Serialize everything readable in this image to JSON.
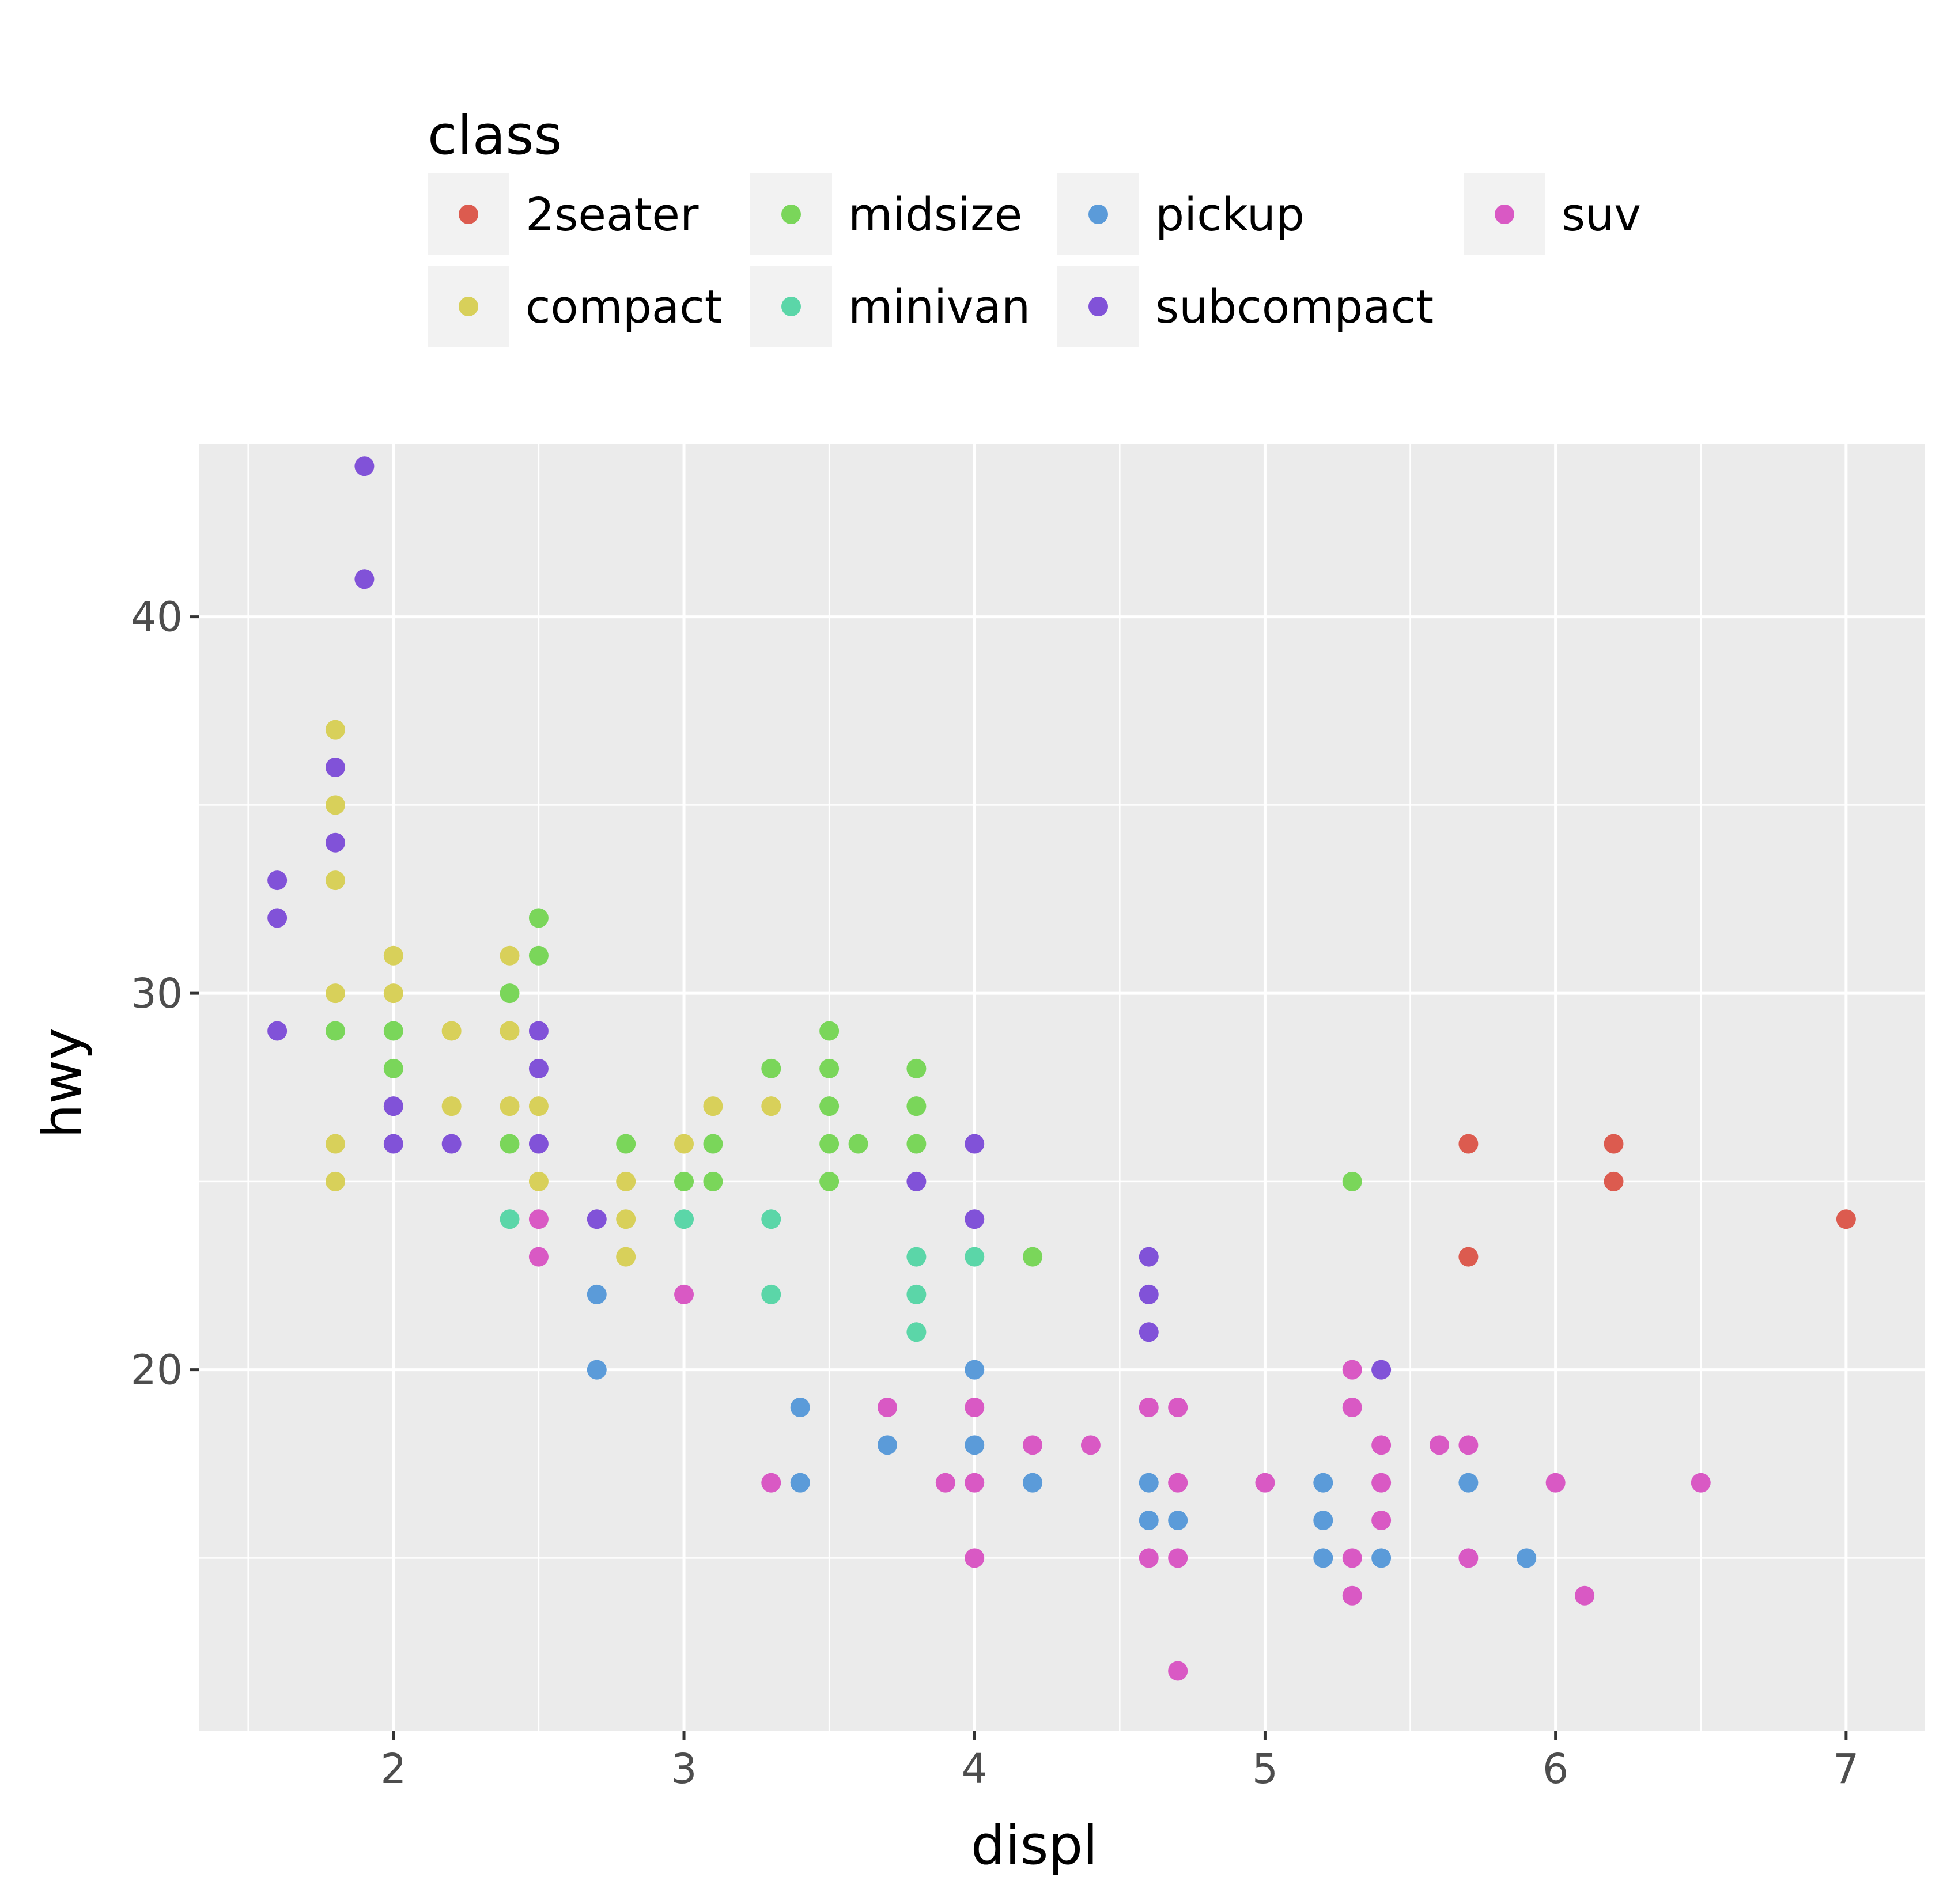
{
  "chart_data": {
    "type": "scatter",
    "title": "",
    "xlabel": "displ",
    "ylabel": "hwy",
    "xlim": [
      1.33,
      7.27
    ],
    "ylim": [
      10.4,
      44.6
    ],
    "x_ticks": [
      2,
      3,
      4,
      5,
      6,
      7
    ],
    "y_ticks": [
      20,
      30,
      40
    ],
    "grid": true,
    "legend": {
      "title": "class",
      "placement": "top",
      "entries": [
        {
          "name": "2seater",
          "color": "#dc5b4f"
        },
        {
          "name": "compact",
          "color": "#d8d05a"
        },
        {
          "name": "midsize",
          "color": "#7ad65a"
        },
        {
          "name": "minivan",
          "color": "#5bd6a8"
        },
        {
          "name": "pickup",
          "color": "#5b9bd9"
        },
        {
          "name": "subcompact",
          "color": "#8152d8"
        },
        {
          "name": "suv",
          "color": "#d959c4"
        }
      ]
    },
    "series": [
      {
        "name": "2seater",
        "color": "#dc5b4f",
        "points": [
          [
            5.7,
            26
          ],
          [
            5.7,
            23
          ],
          [
            6.2,
            26
          ],
          [
            6.2,
            25
          ],
          [
            7.0,
            24
          ]
        ]
      },
      {
        "name": "compact",
        "color": "#d8d05a",
        "points": [
          [
            1.8,
            37
          ],
          [
            1.8,
            35
          ],
          [
            1.8,
            33
          ],
          [
            1.8,
            30
          ],
          [
            1.8,
            26
          ],
          [
            1.8,
            25
          ],
          [
            2.0,
            31
          ],
          [
            2.0,
            30
          ],
          [
            2.2,
            29
          ],
          [
            2.2,
            27
          ],
          [
            2.4,
            31
          ],
          [
            2.4,
            29
          ],
          [
            2.4,
            27
          ],
          [
            2.5,
            27
          ],
          [
            2.5,
            25
          ],
          [
            2.8,
            25
          ],
          [
            2.8,
            24
          ],
          [
            2.8,
            23
          ],
          [
            3.0,
            26
          ],
          [
            3.1,
            27
          ],
          [
            3.3,
            27
          ]
        ]
      },
      {
        "name": "midsize",
        "color": "#7ad65a",
        "points": [
          [
            1.8,
            29
          ],
          [
            2.0,
            29
          ],
          [
            2.0,
            28
          ],
          [
            2.4,
            30
          ],
          [
            2.4,
            26
          ],
          [
            2.5,
            32
          ],
          [
            2.5,
            31
          ],
          [
            2.8,
            26
          ],
          [
            3.0,
            25
          ],
          [
            3.1,
            26
          ],
          [
            3.1,
            25
          ],
          [
            3.3,
            28
          ],
          [
            3.5,
            29
          ],
          [
            3.5,
            28
          ],
          [
            3.5,
            27
          ],
          [
            3.5,
            26
          ],
          [
            3.5,
            25
          ],
          [
            3.6,
            26
          ],
          [
            3.8,
            28
          ],
          [
            3.8,
            27
          ],
          [
            3.8,
            26
          ],
          [
            4.2,
            23
          ],
          [
            5.3,
            25
          ]
        ]
      },
      {
        "name": "minivan",
        "color": "#5bd6a8",
        "points": [
          [
            2.4,
            24
          ],
          [
            3.0,
            24
          ],
          [
            3.3,
            24
          ],
          [
            3.3,
            22
          ],
          [
            3.8,
            23
          ],
          [
            3.8,
            22
          ],
          [
            3.8,
            21
          ],
          [
            4.0,
            23
          ]
        ]
      },
      {
        "name": "pickup",
        "color": "#5b9bd9",
        "points": [
          [
            2.7,
            22
          ],
          [
            2.7,
            20
          ],
          [
            3.4,
            19
          ],
          [
            3.4,
            17
          ],
          [
            3.7,
            18
          ],
          [
            4.0,
            20
          ],
          [
            4.0,
            18
          ],
          [
            4.2,
            17
          ],
          [
            4.6,
            17
          ],
          [
            4.6,
            16
          ],
          [
            4.7,
            16
          ],
          [
            5.2,
            17
          ],
          [
            5.2,
            16
          ],
          [
            5.2,
            15
          ],
          [
            5.4,
            15
          ],
          [
            5.7,
            17
          ],
          [
            5.9,
            15
          ]
        ]
      },
      {
        "name": "subcompact",
        "color": "#8152d8",
        "points": [
          [
            1.6,
            33
          ],
          [
            1.6,
            32
          ],
          [
            1.6,
            29
          ],
          [
            1.8,
            36
          ],
          [
            1.8,
            34
          ],
          [
            1.9,
            44
          ],
          [
            1.9,
            41
          ],
          [
            2.0,
            27
          ],
          [
            2.0,
            26
          ],
          [
            2.2,
            26
          ],
          [
            2.5,
            29
          ],
          [
            2.5,
            28
          ],
          [
            2.5,
            26
          ],
          [
            2.7,
            24
          ],
          [
            3.8,
            25
          ],
          [
            4.0,
            26
          ],
          [
            4.0,
            24
          ],
          [
            4.6,
            23
          ],
          [
            4.6,
            22
          ],
          [
            4.6,
            21
          ],
          [
            5.4,
            20
          ]
        ]
      },
      {
        "name": "suv",
        "color": "#d959c4",
        "points": [
          [
            2.5,
            24
          ],
          [
            2.5,
            23
          ],
          [
            3.0,
            22
          ],
          [
            3.3,
            17
          ],
          [
            3.7,
            19
          ],
          [
            3.9,
            17
          ],
          [
            4.0,
            19
          ],
          [
            4.0,
            17
          ],
          [
            4.0,
            15
          ],
          [
            4.2,
            18
          ],
          [
            4.4,
            18
          ],
          [
            4.6,
            19
          ],
          [
            4.6,
            15
          ],
          [
            4.7,
            19
          ],
          [
            4.7,
            17
          ],
          [
            4.7,
            15
          ],
          [
            4.7,
            12
          ],
          [
            5.0,
            17
          ],
          [
            5.3,
            20
          ],
          [
            5.3,
            19
          ],
          [
            5.3,
            15
          ],
          [
            5.3,
            14
          ],
          [
            5.4,
            18
          ],
          [
            5.4,
            17
          ],
          [
            5.4,
            16
          ],
          [
            5.6,
            18
          ],
          [
            5.7,
            18
          ],
          [
            5.7,
            15
          ],
          [
            6.0,
            17
          ],
          [
            6.1,
            14
          ],
          [
            6.5,
            17
          ]
        ]
      }
    ]
  }
}
